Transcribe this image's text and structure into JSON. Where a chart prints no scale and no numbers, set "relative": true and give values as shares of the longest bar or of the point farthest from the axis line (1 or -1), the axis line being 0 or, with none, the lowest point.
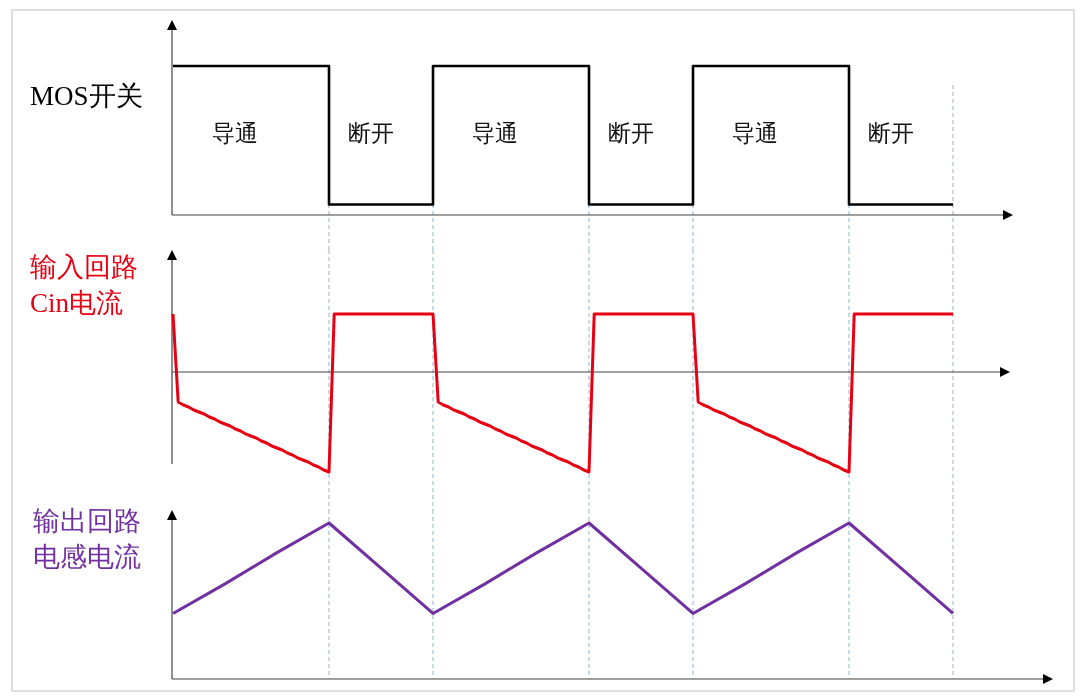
{
  "chart_data": [
    {
      "type": "step",
      "ylabel": "MOS开关",
      "categories": [
        null,
        null,
        null,
        null,
        null,
        null,
        null,
        null,
        null,
        null,
        null,
        null,
        null,
        null,
        null,
        null
      ],
      "series": [
        {
          "color": "#000000",
          "values": [
            1,
            1,
            1,
            0.07,
            0.07,
            1,
            1,
            1,
            0.07,
            0.07,
            1,
            1,
            1,
            0.07,
            0.07,
            0.07
          ]
        }
      ],
      "relative": true,
      "grid": "x",
      "annotations": [
        "导通",
        "断开",
        "导通",
        "断开",
        "导通",
        "断开"
      ]
    },
    {
      "type": "line",
      "ylabel": "输入回路Cin电流",
      "categories": [
        null,
        null,
        null,
        null,
        null,
        null,
        null,
        null,
        null,
        null,
        null,
        null,
        null,
        null,
        null,
        null,
        null,
        null,
        null,
        null,
        null,
        null,
        null,
        null,
        null,
        null,
        null,
        null,
        null,
        null,
        null,
        null,
        null,
        null,
        null,
        null,
        null,
        null,
        null,
        null,
        null,
        null,
        null,
        null,
        null,
        null,
        null,
        null,
        null,
        null,
        null,
        null,
        null,
        null,
        null,
        null,
        null,
        null,
        null,
        null,
        null,
        null,
        null,
        null,
        null,
        null,
        null,
        null,
        null,
        null,
        null,
        null,
        null,
        null,
        null,
        null,
        null,
        null,
        null,
        null,
        null,
        null,
        null,
        null,
        null,
        null,
        null,
        null,
        null,
        null,
        null,
        null,
        null,
        null,
        null,
        null,
        null,
        null,
        null,
        null,
        null,
        null,
        null,
        null,
        null,
        null,
        null,
        null,
        null,
        null,
        null,
        null,
        null,
        null,
        null,
        null,
        null,
        null,
        null,
        null,
        null,
        null,
        null,
        null,
        null,
        null,
        null,
        null,
        null,
        null,
        null,
        null,
        null,
        null,
        null,
        null,
        null,
        null,
        null,
        null,
        null,
        null,
        null,
        null,
        null,
        null,
        null,
        null,
        null,
        null,
        null
      ],
      "series": [
        {
          "color": "#e60012",
          "values": [
            0.58,
            -0.3,
            -0.33,
            -0.35,
            -0.38,
            -0.4,
            -0.42,
            -0.45,
            -0.47,
            -0.5,
            -0.52,
            -0.54,
            -0.57,
            -0.59,
            -0.62,
            -0.64,
            -0.66,
            -0.69,
            -0.71,
            -0.74,
            -0.76,
            -0.78,
            -0.81,
            -0.83,
            -0.86,
            -0.88,
            -0.9,
            -0.93,
            -0.95,
            -0.98,
            -1,
            0.58,
            0.58,
            0.58,
            0.58,
            0.58,
            0.58,
            0.58,
            0.58,
            0.58,
            0.58,
            0.58,
            0.58,
            0.58,
            0.58,
            0.58,
            0.58,
            0.58,
            0.58,
            0.58,
            0.58,
            -0.3,
            -0.33,
            -0.35,
            -0.38,
            -0.4,
            -0.42,
            -0.45,
            -0.47,
            -0.5,
            -0.52,
            -0.54,
            -0.57,
            -0.59,
            -0.62,
            -0.64,
            -0.66,
            -0.69,
            -0.71,
            -0.74,
            -0.76,
            -0.78,
            -0.81,
            -0.83,
            -0.86,
            -0.88,
            -0.9,
            -0.93,
            -0.95,
            -0.98,
            -1,
            0.58,
            0.58,
            0.58,
            0.58,
            0.58,
            0.58,
            0.58,
            0.58,
            0.58,
            0.58,
            0.58,
            0.58,
            0.58,
            0.58,
            0.58,
            0.58,
            0.58,
            0.58,
            0.58,
            0.58,
            -0.3,
            -0.33,
            -0.35,
            -0.38,
            -0.4,
            -0.42,
            -0.45,
            -0.47,
            -0.5,
            -0.52,
            -0.54,
            -0.57,
            -0.59,
            -0.62,
            -0.64,
            -0.66,
            -0.69,
            -0.71,
            -0.74,
            -0.76,
            -0.78,
            -0.81,
            -0.83,
            -0.86,
            -0.88,
            -0.9,
            -0.93,
            -0.95,
            -0.98,
            -1,
            0.58,
            0.58,
            0.58,
            0.58,
            0.58,
            0.58,
            0.58,
            0.58,
            0.58,
            0.58,
            0.58,
            0.58,
            0.58,
            0.58,
            0.58,
            0.58,
            0.58,
            0.58,
            0.58,
            0.58
          ]
        }
      ],
      "relative": true,
      "grid": "x"
    },
    {
      "type": "line",
      "ylabel": "输出回路电感电流",
      "categories": [
        null,
        null,
        null,
        null,
        null,
        null,
        null,
        null,
        null,
        null,
        null,
        null,
        null,
        null,
        null,
        null
      ],
      "series": [
        {
          "color": "#7030a0",
          "values": [
            0.42,
            0.61,
            0.81,
            1,
            0.71,
            0.42,
            0.61,
            0.81,
            1,
            0.71,
            0.42,
            0.61,
            0.81,
            1,
            0.71,
            0.42
          ]
        }
      ],
      "relative": true,
      "grid": "x"
    }
  ]
}
